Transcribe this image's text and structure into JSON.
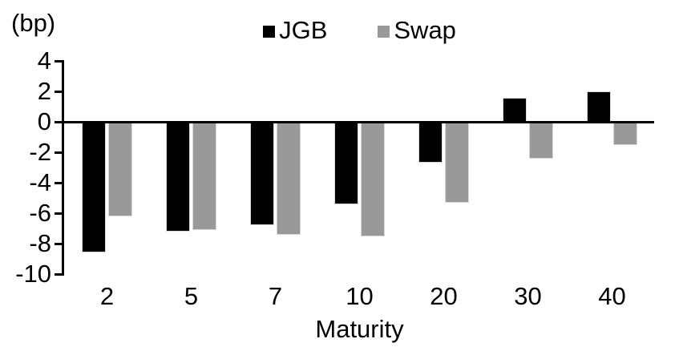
{
  "chart_data": {
    "type": "bar",
    "title": "",
    "ylabel": "(bp)",
    "xlabel": "Maturity",
    "categories": [
      "2",
      "5",
      "7",
      "10",
      "20",
      "30",
      "40"
    ],
    "series": [
      {
        "name": "JGB",
        "color": "#000000",
        "values": [
          -8.6,
          -7.2,
          -6.8,
          -5.4,
          -2.7,
          1.6,
          2.0
        ]
      },
      {
        "name": "Swap",
        "color": "#999999",
        "values": [
          -6.2,
          -7.1,
          -7.4,
          -7.5,
          -5.3,
          -2.4,
          -1.5
        ]
      }
    ],
    "yticks": [
      4,
      2,
      0,
      -2,
      -4,
      -6,
      -8,
      -10
    ],
    "ylim": [
      -10,
      4
    ],
    "grid": false,
    "legend_position": "top-center",
    "baseline": 0
  }
}
